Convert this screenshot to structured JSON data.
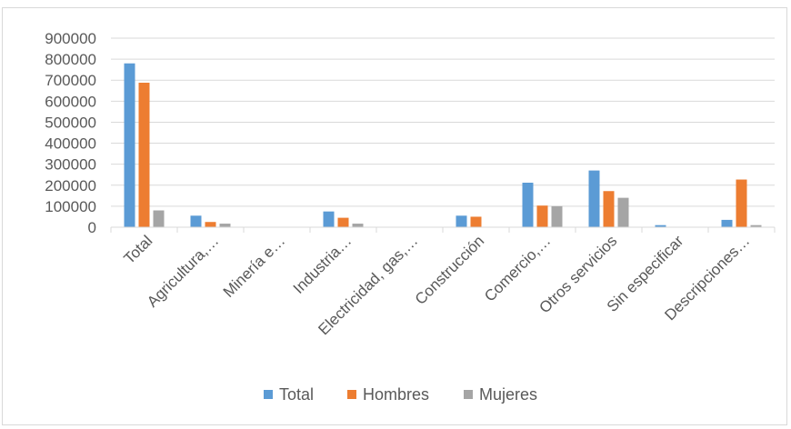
{
  "chart_data": {
    "type": "bar",
    "categories": [
      "Total",
      "Agricultura,…",
      "Minería e…",
      "Industria…",
      "Electricidad, gas,…",
      "Construcción",
      "Comercio,…",
      "Otros servicios",
      "Sin especificar",
      "Descripciones…"
    ],
    "series": [
      {
        "name": "Total",
        "color": "#5b9bd5",
        "values": [
          780000,
          55000,
          0,
          75000,
          0,
          55000,
          212000,
          270000,
          10000,
          35000
        ]
      },
      {
        "name": "Hombres",
        "color": "#ed7d31",
        "values": [
          688000,
          25000,
          0,
          45000,
          0,
          50000,
          103000,
          172000,
          0,
          227000
        ]
      },
      {
        "name": "Mujeres",
        "color": "#a5a5a5",
        "values": [
          80000,
          17000,
          0,
          17000,
          0,
          0,
          100000,
          140000,
          0,
          10000
        ]
      }
    ],
    "yticks": [
      "0",
      "100000",
      "200000",
      "300000",
      "400000",
      "500000",
      "600000",
      "700000",
      "800000",
      "900000"
    ],
    "ylim": [
      0,
      900000
    ],
    "grid": true,
    "legend_position": "bottom"
  }
}
